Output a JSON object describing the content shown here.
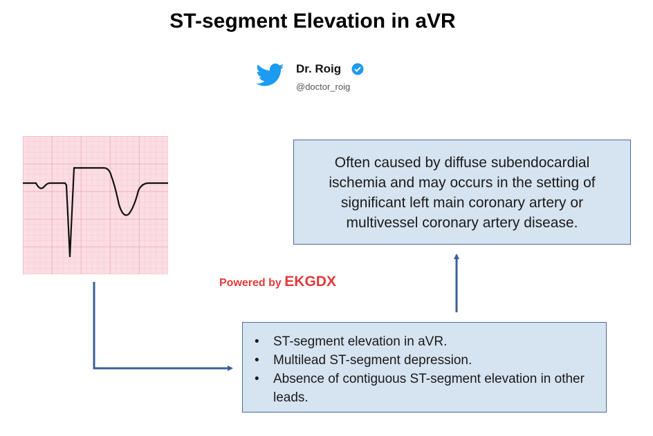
{
  "header": {
    "title": "ST-segment Elevation in aVR",
    "author": {
      "name": "Dr. Roig",
      "handle": "@doctor_roig"
    }
  },
  "description": "Often caused by diffuse subendocardial ischemia and may occurs in the setting of significant left main coronary artery or multivessel coronary artery disease.",
  "powered_by": {
    "prefix": "Powered by",
    "brand": "EKGDX"
  },
  "criteria": [
    "ST-segment elevation in aVR.",
    "Multilead ST-segment depression.",
    "Absence of contiguous ST-segment elevation in other leads."
  ]
}
